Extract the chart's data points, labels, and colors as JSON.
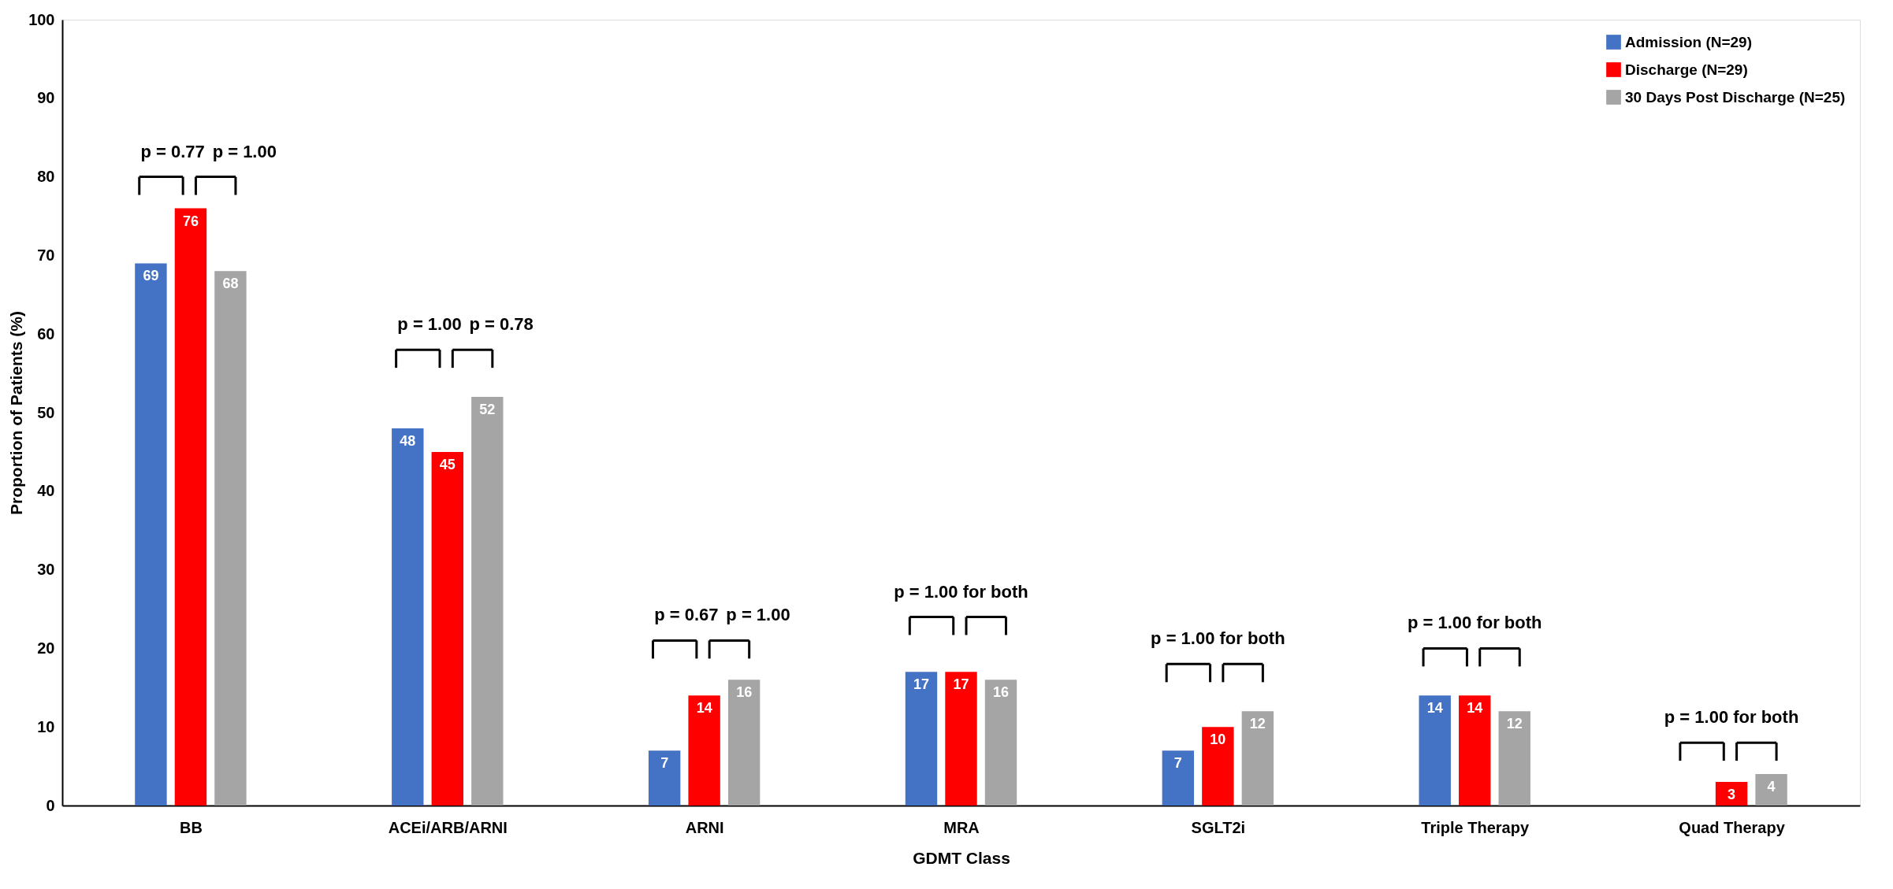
{
  "chart_data": {
    "type": "bar",
    "xlabel": "GDMT Class",
    "ylabel": "Proportion of Patients (%)",
    "categories": [
      "BB",
      "ACEi/ARB/ARNI",
      "ARNI",
      "MRA",
      "SGLT2i",
      "Triple Therapy",
      "Quad Therapy"
    ],
    "series": [
      {
        "name": "Admission (N=29)",
        "color": "#4472c4",
        "values": [
          69,
          48,
          7,
          17,
          7,
          14,
          0
        ],
        "value_labels": [
          "69",
          "48",
          "7",
          "17",
          "7",
          "14",
          null
        ]
      },
      {
        "name": "Discharge (N=29)",
        "color": "#ff0000",
        "values": [
          76,
          45,
          14,
          17,
          10,
          14,
          3
        ],
        "value_labels": [
          "76",
          "45",
          "14",
          "17",
          "10",
          "14",
          "3"
        ]
      },
      {
        "name": "30 Days Post Discharge (N=25)",
        "color": "#a5a5a5",
        "values": [
          68,
          52,
          16,
          16,
          12,
          12,
          4
        ],
        "value_labels": [
          "68",
          "52",
          "16",
          "16",
          "12",
          "12",
          "4"
        ]
      }
    ],
    "ylim": [
      0,
      100
    ],
    "yticks": [
      0,
      10,
      20,
      30,
      40,
      50,
      60,
      70,
      80,
      90,
      100
    ],
    "grid": false,
    "legend": "top right",
    "annotations": [
      "p = 0.77",
      "p = 1.00",
      "p = 1.00",
      "p = 0.78",
      "p = 0.67",
      "p = 1.00",
      "p = 1.00 for both",
      "p = 1.00 for both",
      "p = 1.00 for both",
      "p = 1.00 for both"
    ]
  }
}
